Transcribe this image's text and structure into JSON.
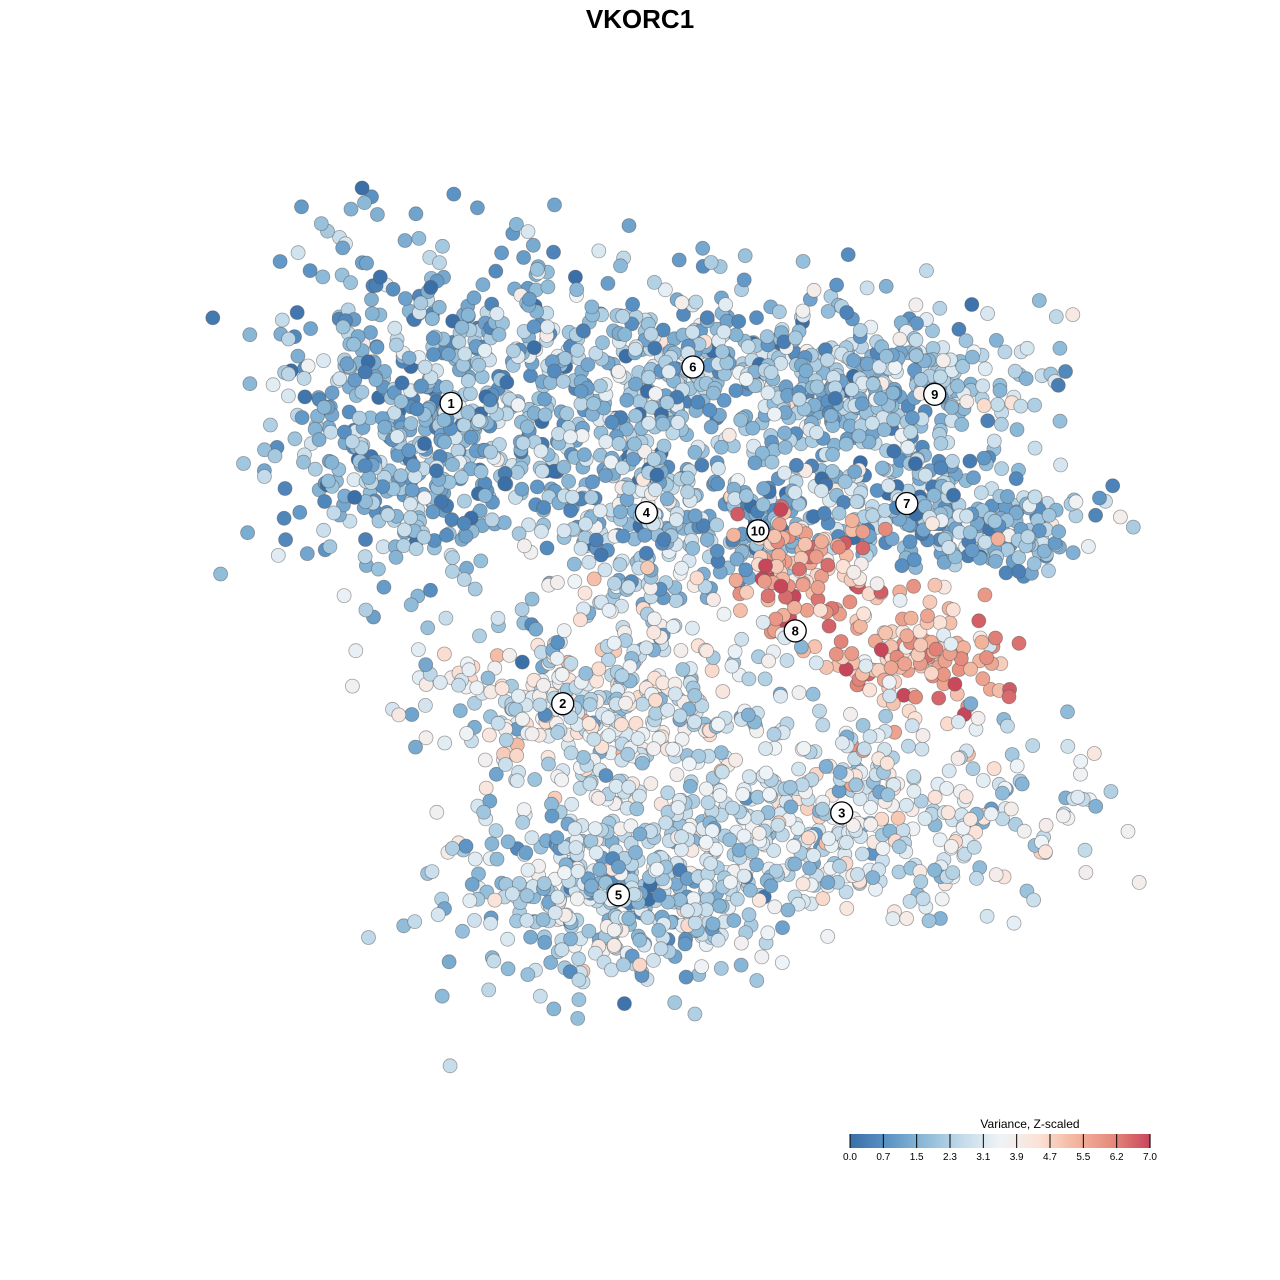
{
  "chart_data": {
    "type": "scatter",
    "title": "VKORC1",
    "xlabel": "",
    "ylabel": "",
    "grid": false,
    "colorbar": {
      "title": "Variance, Z-scaled",
      "ticks": [
        "0.0",
        "0.7",
        "1.5",
        "2.3",
        "3.1",
        "3.9",
        "4.7",
        "5.5",
        "6.2",
        "7.0"
      ],
      "range": [
        0,
        7
      ],
      "colors": [
        "#3b6fa8",
        "#5b93c5",
        "#8dbad8",
        "#c3dbea",
        "#eef3f7",
        "#fbe3d8",
        "#f3b69e",
        "#e58a7c",
        "#c8465a"
      ],
      "placement": "bottom-right"
    },
    "clusters": [
      {
        "label": "1",
        "x": 0.27,
        "y": 0.76,
        "mean": 1.6
      },
      {
        "label": "2",
        "x": 0.39,
        "y": 0.43,
        "mean": 3.3
      },
      {
        "label": "3",
        "x": 0.69,
        "y": 0.31,
        "mean": 3.0
      },
      {
        "label": "4",
        "x": 0.48,
        "y": 0.64,
        "mean": 2.1
      },
      {
        "label": "5",
        "x": 0.45,
        "y": 0.22,
        "mean": 2.4
      },
      {
        "label": "6",
        "x": 0.53,
        "y": 0.8,
        "mean": 1.9
      },
      {
        "label": "7",
        "x": 0.76,
        "y": 0.65,
        "mean": 1.8
      },
      {
        "label": "8",
        "x": 0.64,
        "y": 0.51,
        "mean": 5.4
      },
      {
        "label": "9",
        "x": 0.79,
        "y": 0.77,
        "mean": 2.2
      },
      {
        "label": "10",
        "x": 0.6,
        "y": 0.62,
        "mean": 1.3
      }
    ]
  }
}
